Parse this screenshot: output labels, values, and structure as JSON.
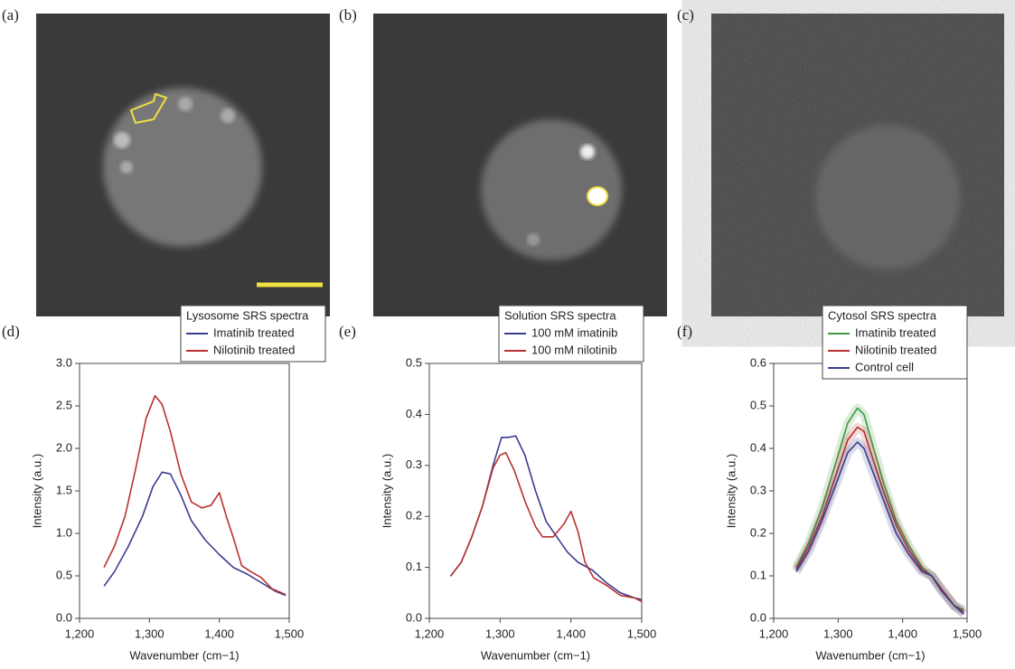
{
  "images": [
    {
      "panel_label": "(a)"
    },
    {
      "panel_label": "(b)"
    },
    {
      "panel_label": "(c)"
    }
  ],
  "chart_data": [
    {
      "type": "line",
      "panel_label": "(d)",
      "legend_title": "Lysosome SRS spectra",
      "xlabel": "Wavenumber (cm−1)",
      "ylabel": "Intensity (a.u.)",
      "xlim": [
        1200,
        1500
      ],
      "xticks": [
        {
          "value": 1200,
          "label": "1,200"
        },
        {
          "value": 1300,
          "label": "1,300"
        },
        {
          "value": 1400,
          "label": "1,400"
        },
        {
          "value": 1500,
          "label": "1,500"
        }
      ],
      "ylim": [
        0,
        3
      ],
      "yticks": [
        {
          "value": 0,
          "label": "0.0"
        },
        0.5,
        {
          "value": 1,
          "label": "1.0"
        },
        1.5,
        {
          "value": 2,
          "label": "2.0"
        },
        2.5,
        {
          "value": 3,
          "label": "3.0"
        }
      ],
      "legend": "upper right",
      "series": [
        {
          "name": "Imatinib treated",
          "color": "#3a3d8f",
          "x": [
            1235,
            1250,
            1270,
            1290,
            1305,
            1318,
            1330,
            1345,
            1360,
            1380,
            1400,
            1420,
            1440,
            1460,
            1480,
            1495
          ],
          "values": [
            0.38,
            0.55,
            0.85,
            1.2,
            1.55,
            1.72,
            1.7,
            1.45,
            1.15,
            0.92,
            0.75,
            0.6,
            0.52,
            0.42,
            0.32,
            0.27
          ]
        },
        {
          "name": "Nilotinib treated",
          "color": "#b8312f",
          "x": [
            1235,
            1250,
            1265,
            1280,
            1295,
            1308,
            1318,
            1330,
            1345,
            1360,
            1375,
            1388,
            1400,
            1410,
            1420,
            1432,
            1445,
            1460,
            1475,
            1495
          ],
          "values": [
            0.6,
            0.85,
            1.2,
            1.75,
            2.35,
            2.62,
            2.52,
            2.2,
            1.7,
            1.37,
            1.3,
            1.33,
            1.48,
            1.2,
            0.95,
            0.62,
            0.55,
            0.48,
            0.35,
            0.28
          ]
        }
      ]
    },
    {
      "type": "line",
      "panel_label": "(e)",
      "legend_title": "Solution SRS spectra",
      "xlabel": "Wavenumber (cm−1)",
      "ylabel": "Intensity (a.u.)",
      "xlim": [
        1200,
        1500
      ],
      "xticks": [
        {
          "value": 1200,
          "label": "1,200"
        },
        {
          "value": 1300,
          "label": "1,300"
        },
        {
          "value": 1400,
          "label": "1,400"
        },
        {
          "value": 1500,
          "label": "1,500"
        }
      ],
      "ylim": [
        0,
        0.5
      ],
      "yticks": [
        {
          "value": 0,
          "label": "0.0"
        },
        0.1,
        0.2,
        0.3,
        0.4,
        0.5
      ],
      "legend": "upper right",
      "series": [
        {
          "name": "100 mM imatinib",
          "color": "#3a3d8f",
          "x": [
            1230,
            1245,
            1260,
            1275,
            1290,
            1302,
            1312,
            1322,
            1335,
            1350,
            1365,
            1380,
            1395,
            1410,
            1430,
            1450,
            1470,
            1490,
            1500
          ],
          "values": [
            0.083,
            0.11,
            0.16,
            0.22,
            0.3,
            0.355,
            0.355,
            0.358,
            0.32,
            0.25,
            0.19,
            0.16,
            0.13,
            0.11,
            0.095,
            0.07,
            0.05,
            0.04,
            0.037
          ]
        },
        {
          "name": "100 mM nilotinib",
          "color": "#b8312f",
          "x": [
            1230,
            1245,
            1260,
            1275,
            1290,
            1300,
            1308,
            1320,
            1335,
            1350,
            1360,
            1375,
            1390,
            1400,
            1410,
            1420,
            1432,
            1450,
            1470,
            1490,
            1500
          ],
          "values": [
            0.083,
            0.11,
            0.16,
            0.22,
            0.295,
            0.32,
            0.325,
            0.29,
            0.23,
            0.18,
            0.16,
            0.16,
            0.185,
            0.21,
            0.17,
            0.11,
            0.08,
            0.065,
            0.045,
            0.04,
            0.033
          ]
        }
      ]
    },
    {
      "type": "line",
      "panel_label": "(f)",
      "legend_title": "Cytosol SRS spectra",
      "xlabel": "Wavenumber (cm−1)",
      "ylabel": "Intensity (a.u.)",
      "xlim": [
        1200,
        1500
      ],
      "xticks": [
        {
          "value": 1200,
          "label": "1,200"
        },
        {
          "value": 1300,
          "label": "1,300"
        },
        {
          "value": 1400,
          "label": "1,400"
        },
        {
          "value": 1500,
          "label": "1,500"
        }
      ],
      "ylim": [
        0,
        0.6
      ],
      "yticks": [
        {
          "value": 0,
          "label": "0.0"
        },
        0.1,
        0.2,
        0.3,
        0.4,
        0.5,
        0.6
      ],
      "legend": "upper right",
      "series": [
        {
          "name": "Imatinib treated",
          "color": "#3c9a3c",
          "x": [
            1235,
            1255,
            1275,
            1295,
            1315,
            1330,
            1340,
            1355,
            1370,
            1390,
            1410,
            1430,
            1445,
            1460,
            1480,
            1495
          ],
          "values": [
            0.12,
            0.18,
            0.26,
            0.36,
            0.46,
            0.495,
            0.48,
            0.4,
            0.32,
            0.23,
            0.17,
            0.12,
            0.1,
            0.07,
            0.03,
            0.02
          ]
        },
        {
          "name": "Nilotinib treated",
          "color": "#b8312f",
          "x": [
            1235,
            1255,
            1275,
            1295,
            1315,
            1330,
            1340,
            1355,
            1370,
            1390,
            1410,
            1430,
            1445,
            1460,
            1480,
            1495
          ],
          "values": [
            0.115,
            0.17,
            0.24,
            0.33,
            0.42,
            0.45,
            0.44,
            0.37,
            0.3,
            0.22,
            0.16,
            0.115,
            0.1,
            0.07,
            0.03,
            0.015
          ]
        },
        {
          "name": "Control cell",
          "color": "#3a3d8f",
          "x": [
            1235,
            1255,
            1275,
            1295,
            1315,
            1330,
            1340,
            1355,
            1370,
            1390,
            1410,
            1430,
            1445,
            1460,
            1480,
            1495
          ],
          "values": [
            0.11,
            0.16,
            0.23,
            0.31,
            0.39,
            0.415,
            0.4,
            0.34,
            0.28,
            0.2,
            0.15,
            0.11,
            0.1,
            0.065,
            0.03,
            0.01
          ]
        }
      ]
    }
  ]
}
